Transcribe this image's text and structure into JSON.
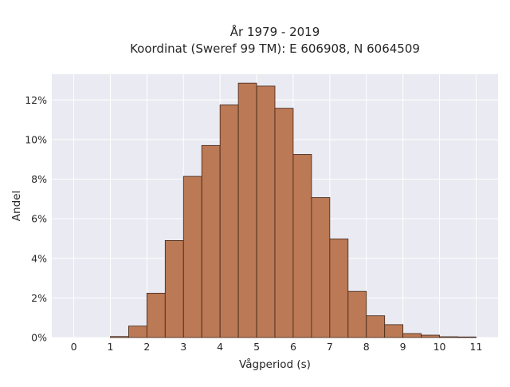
{
  "chart_data": {
    "type": "bar",
    "title_line1": "År 1979 - 2019",
    "title_line2": "Koordinat (Sweref 99 TM): E 606908, N 6064509",
    "xlabel": "Vågperiod (s)",
    "ylabel": "Andel",
    "x_ticks": [
      "0",
      "1",
      "2",
      "3",
      "4",
      "5",
      "6",
      "7",
      "8",
      "9",
      "10",
      "11"
    ],
    "y_ticks": [
      "0%",
      "2%",
      "4%",
      "6%",
      "8%",
      "10%",
      "12%"
    ],
    "xlim": [
      -0.6,
      11.6
    ],
    "ylim": [
      0,
      13.3
    ],
    "bin_width": 0.5,
    "bins": [
      {
        "x0": 1.0,
        "value": 0.05
      },
      {
        "x0": 1.5,
        "value": 0.58
      },
      {
        "x0": 2.0,
        "value": 2.24
      },
      {
        "x0": 2.5,
        "value": 4.9
      },
      {
        "x0": 3.0,
        "value": 8.14
      },
      {
        "x0": 3.5,
        "value": 9.7
      },
      {
        "x0": 4.0,
        "value": 11.75
      },
      {
        "x0": 4.5,
        "value": 12.85
      },
      {
        "x0": 5.0,
        "value": 12.7
      },
      {
        "x0": 5.5,
        "value": 11.58
      },
      {
        "x0": 6.0,
        "value": 9.25
      },
      {
        "x0": 6.5,
        "value": 7.07
      },
      {
        "x0": 7.0,
        "value": 4.98
      },
      {
        "x0": 7.5,
        "value": 2.33
      },
      {
        "x0": 8.0,
        "value": 1.1
      },
      {
        "x0": 8.5,
        "value": 0.65
      },
      {
        "x0": 9.0,
        "value": 0.2
      },
      {
        "x0": 9.5,
        "value": 0.12
      },
      {
        "x0": 10.0,
        "value": 0.04
      },
      {
        "x0": 10.5,
        "value": 0.03
      }
    ],
    "grid": true,
    "colors": {
      "bar_fill": "#bb7955",
      "bar_edge": "#3f2417",
      "plot_bg": "#eaeaf2",
      "grid": "#ffffff"
    }
  }
}
